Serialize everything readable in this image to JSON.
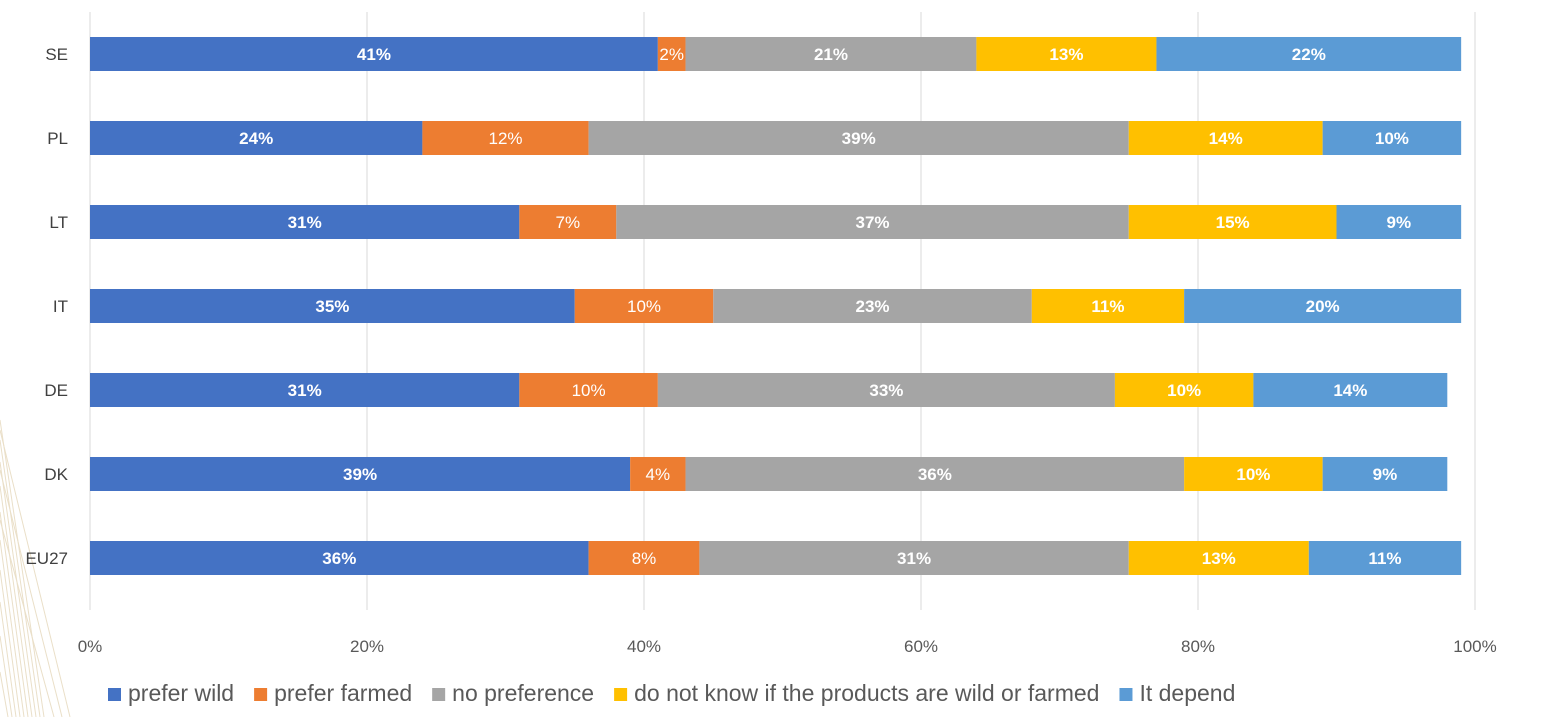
{
  "chart_data": {
    "type": "bar",
    "orientation": "horizontal",
    "stacked": true,
    "categories": [
      "SE",
      "PL",
      "LT",
      "IT",
      "DE",
      "DK",
      "EU27"
    ],
    "series": [
      {
        "name": "prefer wild",
        "color": "#4472c4",
        "label_color": "#ffffff",
        "label_bold": true,
        "values": [
          41,
          24,
          31,
          35,
          31,
          39,
          36
        ],
        "labels": [
          "41%",
          "24%",
          "31%",
          "35%",
          "31%",
          "39%",
          "36%"
        ]
      },
      {
        "name": "prefer farmed",
        "color": "#ed7d31",
        "label_color": "#ffffff",
        "label_bold": false,
        "values": [
          2,
          12,
          7,
          10,
          10,
          4,
          8
        ],
        "labels": [
          "2%",
          "12%",
          "7%",
          "10%",
          "10%",
          "4%",
          "8%"
        ]
      },
      {
        "name": "no preference",
        "color": "#a5a5a5",
        "label_color": "#ffffff",
        "label_bold": true,
        "values": [
          21,
          39,
          37,
          23,
          33,
          36,
          31
        ],
        "labels": [
          "21%",
          "39%",
          "37%",
          "23%",
          "33%",
          "36%",
          "31%"
        ]
      },
      {
        "name": "do not know if the products are wild or farmed",
        "color": "#ffc000",
        "label_color": "#ffffff",
        "label_bold": true,
        "values": [
          13,
          14,
          15,
          11,
          10,
          10,
          13
        ],
        "labels": [
          "13%",
          "14%",
          "15%",
          "11%",
          "10%",
          "10%",
          "13%"
        ]
      },
      {
        "name": "It depends",
        "legend_visible_text": "It depend",
        "color": "#5b9bd5",
        "label_color": "#ffffff",
        "label_bold": true,
        "values": [
          22,
          10,
          9,
          20,
          14,
          9,
          11
        ],
        "labels": [
          "22%",
          "10%",
          "9%",
          "20%",
          "14%",
          "9%",
          "11%"
        ]
      }
    ],
    "xlim": [
      0,
      100
    ],
    "xticks": [
      "0%",
      "20%",
      "40%",
      "60%",
      "80%",
      "100%"
    ],
    "grid": true,
    "legend_position": "bottom",
    "title": "",
    "xlabel": "",
    "ylabel": ""
  }
}
